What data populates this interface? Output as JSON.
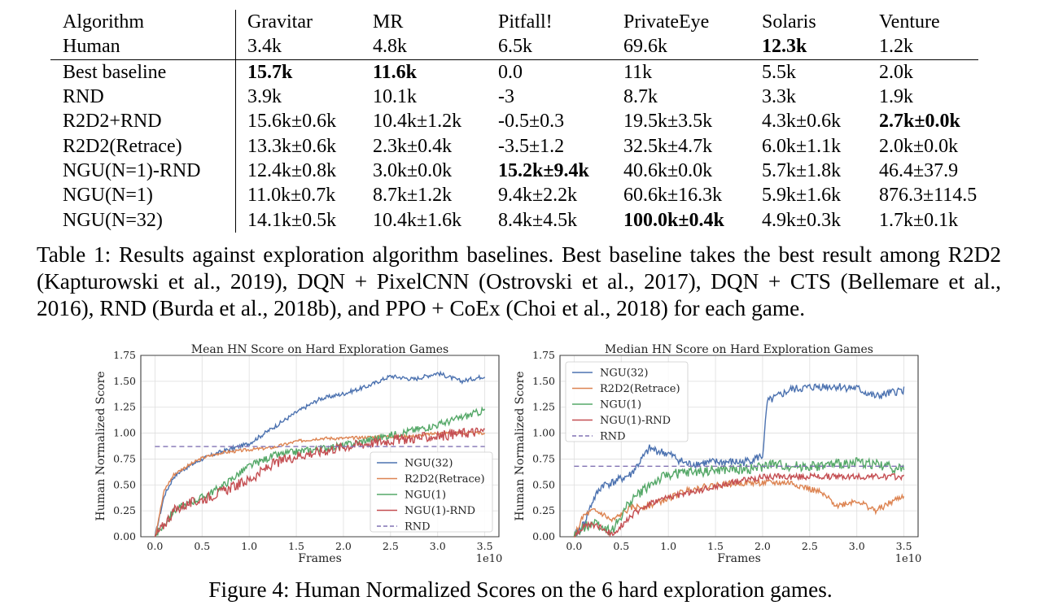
{
  "table": {
    "header": [
      "Algorithm",
      "Gravitar",
      "MR",
      "Pitfall!",
      "PrivateEye",
      "Solaris",
      "Venture"
    ],
    "rows": [
      {
        "cells": [
          "Human",
          "3.4k",
          "4.8k",
          "6.5k",
          "69.6k",
          "12.3k",
          "1.2k"
        ],
        "bold": [
          5
        ]
      },
      {
        "cells": [
          "Best baseline",
          "15.7k",
          "11.6k",
          "0.0",
          "11k",
          "5.5k",
          "2.0k"
        ],
        "bold": [
          1,
          2
        ]
      },
      {
        "cells": [
          "RND",
          "3.9k",
          "10.1k",
          "-3",
          "8.7k",
          "3.3k",
          "1.9k"
        ],
        "bold": []
      },
      {
        "cells": [
          "R2D2+RND",
          "15.6k±0.6k",
          "10.4k±1.2k",
          "-0.5±0.3",
          "19.5k±3.5k",
          "4.3k±0.6k",
          "2.7k±0.0k"
        ],
        "bold": [
          6
        ]
      },
      {
        "cells": [
          "R2D2(Retrace)",
          "13.3k±0.6k",
          "2.3k±0.4k",
          "-3.5±1.2",
          "32.5k±4.7k",
          "6.0k±1.1k",
          "2.0k±0.0k"
        ],
        "bold": []
      },
      {
        "cells": [
          "NGU(N=1)-RND",
          "12.4k±0.8k",
          "3.0k±0.0k",
          "15.2k±9.4k",
          "40.6k±0.0k",
          "5.7k±1.8k",
          "46.4±37.9"
        ],
        "bold": [
          3
        ]
      },
      {
        "cells": [
          "NGU(N=1)",
          "11.0k±0.7k",
          "8.7k±1.2k",
          "9.4k±2.2k",
          "60.6k±16.3k",
          "5.9k±1.6k",
          "876.3±114.5"
        ],
        "bold": []
      },
      {
        "cells": [
          "NGU(N=32)",
          "14.1k±0.5k",
          "10.4k±1.6k",
          "8.4k±4.5k",
          "100.0k±0.4k",
          "4.9k±0.3k",
          "1.7k±0.1k"
        ],
        "bold": [
          4
        ]
      }
    ]
  },
  "table_caption": "Table 1: Results against exploration algorithm baselines. Best baseline takes the best result among R2D2 (Kapturowski et al., 2019), DQN + PixelCNN (Ostrovski et al., 2017), DQN + CTS (Bellemare et al., 2016), RND (Burda et al., 2018b), and PPO + CoEx (Choi et al., 2018) for each game.",
  "figure_caption": "Figure 4: Human Normalized Scores on the 6 hard exploration games.",
  "colors": {
    "NGU(32)": "#4c72b0",
    "R2D2(Retrace)": "#dd8452",
    "NGU(1)": "#55a868",
    "NGU(1)-RND": "#c44e52",
    "RND": "#8172b3"
  },
  "chart_data": [
    {
      "type": "line",
      "title": "Mean HN Score on Hard Exploration Games",
      "xlabel": "Frames",
      "ylabel": "Human Normalized Score",
      "x_multiplier": "1e10",
      "xlim": [
        -0.15,
        3.65
      ],
      "ylim": [
        0,
        1.75
      ],
      "xticks": [
        "0.0",
        "0.5",
        "1.0",
        "1.5",
        "2.0",
        "2.5",
        "3.0",
        "3.5"
      ],
      "yticks": [
        "0.00",
        "0.25",
        "0.50",
        "0.75",
        "1.00",
        "1.25",
        "1.50",
        "1.75"
      ],
      "grid": true,
      "legend_position": "lower-right",
      "x": [
        0,
        0.1,
        0.2,
        0.3,
        0.5,
        0.7,
        1.0,
        1.25,
        1.5,
        1.75,
        2.0,
        2.25,
        2.5,
        2.75,
        3.0,
        3.25,
        3.5
      ],
      "series": [
        {
          "name": "NGU(32)",
          "values": [
            0,
            0.4,
            0.58,
            0.65,
            0.75,
            0.82,
            0.9,
            1.05,
            1.2,
            1.33,
            1.38,
            1.45,
            1.55,
            1.52,
            1.58,
            1.5,
            1.55
          ],
          "noise": 0.02
        },
        {
          "name": "R2D2(Retrace)",
          "values": [
            0,
            0.45,
            0.6,
            0.66,
            0.76,
            0.81,
            0.84,
            0.86,
            0.92,
            0.95,
            0.95,
            0.96,
            0.97,
            0.97,
            1.0,
            1.0,
            1.0
          ],
          "noise": 0.015
        },
        {
          "name": "NGU(1)",
          "values": [
            0,
            0.12,
            0.25,
            0.3,
            0.38,
            0.48,
            0.68,
            0.78,
            0.82,
            0.85,
            0.88,
            0.93,
            0.98,
            1.03,
            1.08,
            1.15,
            1.22
          ],
          "noise": 0.035
        },
        {
          "name": "NGU(1)-RND",
          "values": [
            0,
            0.12,
            0.25,
            0.3,
            0.36,
            0.43,
            0.55,
            0.7,
            0.78,
            0.82,
            0.87,
            0.9,
            0.93,
            0.95,
            0.97,
            1.0,
            1.02
          ],
          "noise": 0.05
        },
        {
          "name": "RND",
          "values": [
            0.87,
            0.87,
            0.87,
            0.87,
            0.87,
            0.87,
            0.87,
            0.87,
            0.87,
            0.87,
            0.87,
            0.87,
            0.87,
            0.87,
            0.87,
            0.87,
            0.87
          ],
          "noise": 0,
          "dashed": true
        }
      ]
    },
    {
      "type": "line",
      "title": "Median HN Score on Hard Exploration Games",
      "xlabel": "Frames",
      "ylabel": "Human Normalized Score",
      "x_multiplier": "1e10",
      "xlim": [
        -0.15,
        3.65
      ],
      "ylim": [
        0,
        1.75
      ],
      "xticks": [
        "0.0",
        "0.5",
        "1.0",
        "1.5",
        "2.0",
        "2.5",
        "3.0",
        "3.5"
      ],
      "yticks": [
        "0.00",
        "0.25",
        "0.50",
        "0.75",
        "1.00",
        "1.25",
        "1.50",
        "1.75"
      ],
      "grid": true,
      "legend_position": "upper-left",
      "x": [
        0,
        0.1,
        0.2,
        0.3,
        0.4,
        0.6,
        0.8,
        1.0,
        1.2,
        1.5,
        1.8,
        2.0,
        2.05,
        2.3,
        2.6,
        2.8,
        3.0,
        3.2,
        3.5
      ],
      "series": [
        {
          "name": "NGU(32)",
          "values": [
            0,
            0.12,
            0.35,
            0.5,
            0.52,
            0.6,
            0.85,
            0.8,
            0.7,
            0.72,
            0.72,
            0.78,
            1.3,
            1.42,
            1.45,
            1.45,
            1.43,
            1.35,
            1.42
          ],
          "noise": 0.04
        },
        {
          "name": "R2D2(Retrace)",
          "values": [
            0,
            0.2,
            0.25,
            0.22,
            0.15,
            0.28,
            0.3,
            0.37,
            0.45,
            0.5,
            0.52,
            0.52,
            0.52,
            0.52,
            0.43,
            0.3,
            0.35,
            0.25,
            0.4
          ],
          "noise": 0.03
        },
        {
          "name": "NGU(1)",
          "values": [
            0,
            0.08,
            0.15,
            0.1,
            0.05,
            0.35,
            0.5,
            0.6,
            0.62,
            0.64,
            0.65,
            0.67,
            0.7,
            0.68,
            0.68,
            0.7,
            0.72,
            0.7,
            0.65
          ],
          "noise": 0.05
        },
        {
          "name": "NGU(1)-RND",
          "values": [
            0,
            0.1,
            0.12,
            0.08,
            0.02,
            0.2,
            0.32,
            0.38,
            0.42,
            0.48,
            0.55,
            0.57,
            0.58,
            0.58,
            0.58,
            0.58,
            0.58,
            0.58,
            0.58
          ],
          "noise": 0.03
        },
        {
          "name": "RND",
          "values": [
            0.68,
            0.68,
            0.68,
            0.68,
            0.68,
            0.68,
            0.68,
            0.68,
            0.68,
            0.68,
            0.68,
            0.68,
            0.68,
            0.68,
            0.68,
            0.68,
            0.68,
            0.68,
            0.68
          ],
          "noise": 0,
          "dashed": true
        }
      ]
    }
  ]
}
